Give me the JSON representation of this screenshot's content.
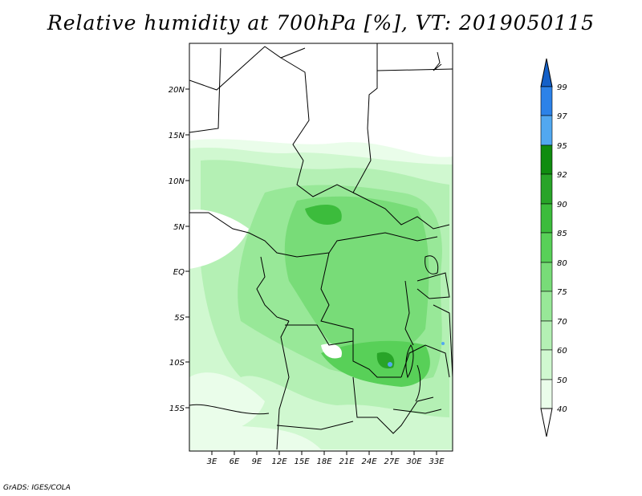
{
  "title": "Relative humidity at 700hPa [%], VT: 2019050115",
  "credit": "GrADS: IGES/COLA",
  "axes": {
    "lat_ticks": [
      "20N",
      "15N",
      "10N",
      "5N",
      "EQ",
      "5S",
      "10S",
      "15S"
    ],
    "lon_ticks": [
      "3E",
      "6E",
      "9E",
      "12E",
      "15E",
      "18E",
      "21E",
      "24E",
      "27E",
      "30E",
      "33E"
    ]
  },
  "colorbar": {
    "levels": [
      "99",
      "97",
      "95",
      "92",
      "90",
      "85",
      "80",
      "75",
      "70",
      "60",
      "50",
      "40"
    ],
    "colors": [
      "#1460c8",
      "#2c82e8",
      "#52a8f0",
      "#108c10",
      "#28a428",
      "#3cbc3c",
      "#58d058",
      "#78dc78",
      "#98e898",
      "#b4f0b4",
      "#d0f8d0",
      "#eafdea",
      "#ffffff"
    ]
  },
  "colors": {
    "border": "#000000",
    "background": "#ffffff"
  }
}
